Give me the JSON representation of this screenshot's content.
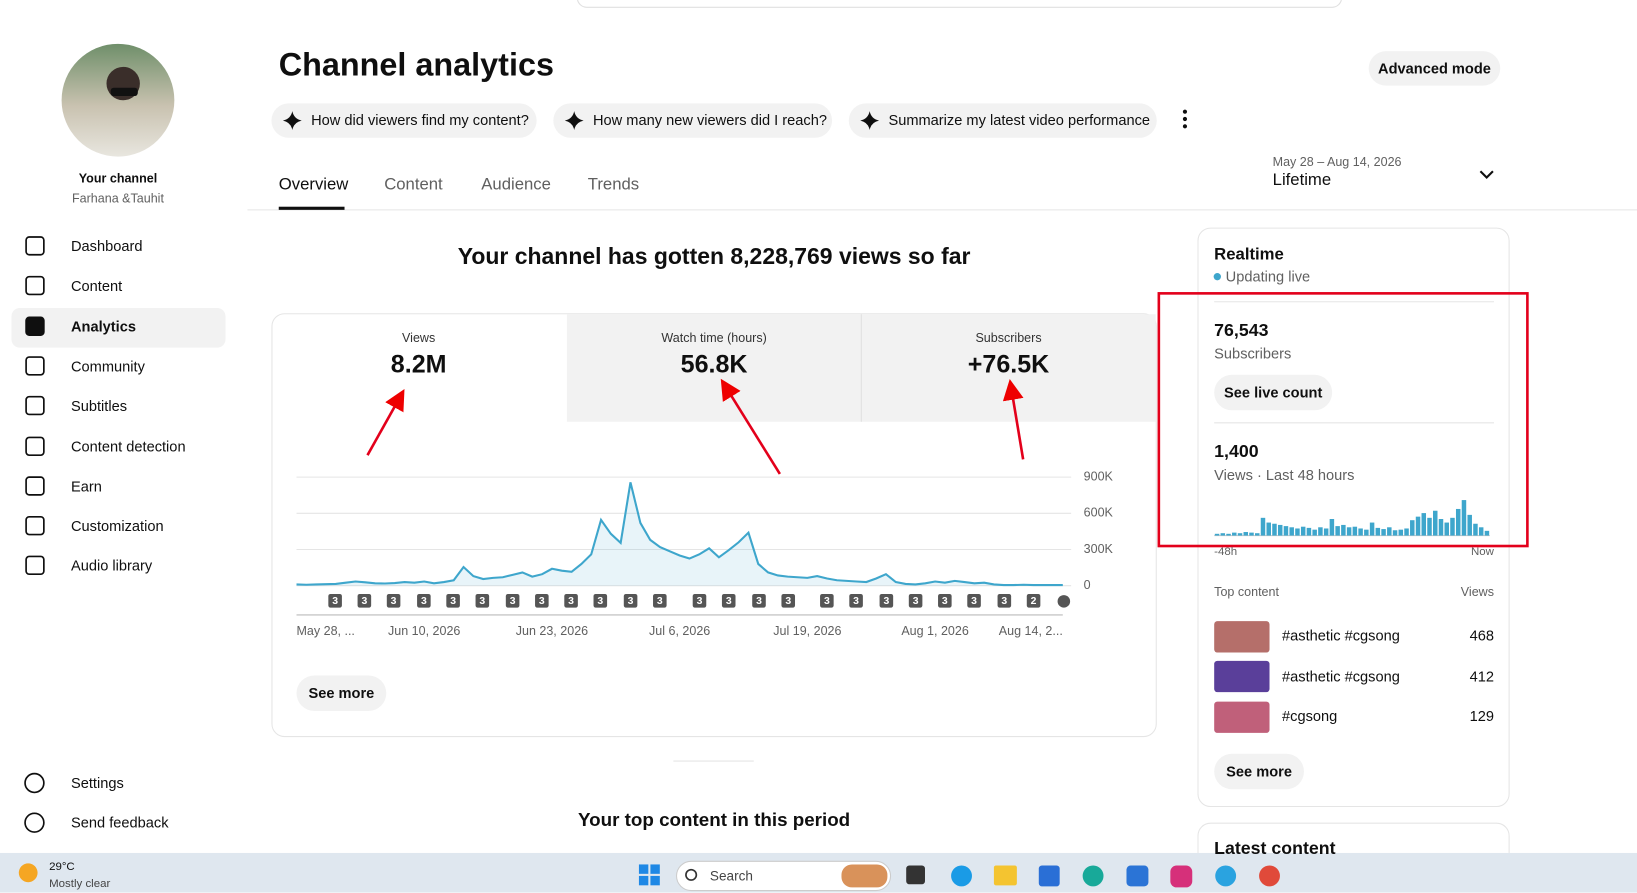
{
  "sidebar": {
    "channel_label": "Your channel",
    "channel_name": "Farhana &Tauhit",
    "nav": [
      "Dashboard",
      "Content",
      "Analytics",
      "Community",
      "Subtitles",
      "Content detection",
      "Earn",
      "Customization",
      "Audio library"
    ],
    "footer_nav": [
      "Settings",
      "Send feedback"
    ]
  },
  "header": {
    "title": "Channel analytics",
    "advanced_button": "Advanced mode",
    "chips": [
      "How did viewers find my content?",
      "How many new viewers did I reach?",
      "Summarize my latest video performance"
    ]
  },
  "tabs": [
    "Overview",
    "Content",
    "Audience",
    "Trends"
  ],
  "date_range": {
    "dates": "May 28 – Aug 14, 2026",
    "period": "Lifetime"
  },
  "headline": "Your channel has gotten 8,228,769 views so far",
  "metrics": [
    {
      "label": "Views",
      "value": "8.2M"
    },
    {
      "label": "Watch time (hours)",
      "value": "56.8K"
    },
    {
      "label": "Subscribers",
      "value": "+76.5K"
    }
  ],
  "chart_data": {
    "type": "line",
    "color": "#3ea6cc",
    "categories": [
      "May 28, ...",
      null,
      null,
      null,
      null,
      null,
      null,
      null,
      null,
      null,
      null,
      null,
      null,
      "Jun 10, 2026",
      null,
      null,
      null,
      null,
      null,
      null,
      null,
      null,
      null,
      null,
      null,
      null,
      "Jun 23, 2026",
      null,
      null,
      null,
      null,
      null,
      null,
      null,
      null,
      null,
      null,
      null,
      null,
      "Jul 6, 2026",
      null,
      null,
      null,
      null,
      null,
      null,
      null,
      null,
      null,
      null,
      null,
      null,
      "Jul 19, 2026",
      null,
      null,
      null,
      null,
      null,
      null,
      null,
      null,
      null,
      null,
      null,
      null,
      "Aug 1, 2026",
      null,
      null,
      null,
      null,
      null,
      null,
      null,
      null,
      null,
      null,
      null,
      null,
      "Aug 14, 2..."
    ],
    "values": [
      10000,
      8000,
      10000,
      12000,
      15000,
      25000,
      35000,
      28000,
      20000,
      18000,
      22000,
      30000,
      25000,
      35000,
      20000,
      30000,
      45000,
      155000,
      80000,
      55000,
      65000,
      70000,
      90000,
      110000,
      75000,
      95000,
      140000,
      125000,
      115000,
      180000,
      260000,
      545000,
      430000,
      355000,
      857000,
      520000,
      380000,
      320000,
      285000,
      250000,
      225000,
      260000,
      310000,
      235000,
      295000,
      360000,
      440000,
      180000,
      110000,
      85000,
      75000,
      70000,
      65000,
      80000,
      60000,
      45000,
      40000,
      35000,
      30000,
      60000,
      95000,
      30000,
      15000,
      10000,
      20000,
      35000,
      25000,
      40000,
      30000,
      20000,
      25000,
      10000,
      5000,
      5000,
      8000,
      5000,
      5000,
      5000,
      5000
    ],
    "ylim": [
      0,
      900000
    ],
    "yticks": [
      0,
      {
        "value": 300000,
        "label": "300K"
      },
      {
        "value": 600000,
        "label": "600K"
      },
      {
        "value": 900000,
        "label": "900K"
      }
    ],
    "grid": true,
    "markers": [
      3,
      3,
      3,
      3,
      3,
      3,
      3,
      3,
      3,
      3,
      3,
      3,
      3,
      3,
      3,
      3,
      3,
      3,
      3,
      3,
      3,
      3,
      3,
      2
    ]
  },
  "see_more": "See more",
  "top_content_heading": "Your top content in this period",
  "realtime": {
    "title": "Realtime",
    "status": "Updating live",
    "subscribers": "76,543",
    "subscribers_label": "Subscribers",
    "live_button": "See live count",
    "views": "1,400",
    "views_label": "Views · Last 48 hours",
    "views_chart": {
      "type": "bar",
      "color": "#3ea6cc",
      "values": [
        3,
        4,
        3,
        5,
        4,
        6,
        5,
        4,
        30,
        22,
        20,
        18,
        16,
        14,
        12,
        15,
        13,
        10,
        14,
        12,
        28,
        16,
        18,
        14,
        15,
        12,
        10,
        22,
        13,
        11,
        14,
        9,
        10,
        12,
        26,
        32,
        38,
        30,
        42,
        28,
        22,
        30,
        45,
        60,
        35,
        20,
        14,
        8
      ],
      "start_label": "-48h",
      "end_label": "Now"
    },
    "top_content_label": "Top content",
    "views_column": "Views",
    "top_content": [
      {
        "title": "#asthetic #cgsong",
        "views": 468
      },
      {
        "title": "#asthetic #cgsong",
        "views": 412
      },
      {
        "title": "#cgsong",
        "views": 129
      }
    ],
    "see_more": "See more"
  },
  "latest_content_heading": "Latest content",
  "taskbar": {
    "temperature": "29°C",
    "weather": "Mostly clear",
    "search": "Search"
  }
}
